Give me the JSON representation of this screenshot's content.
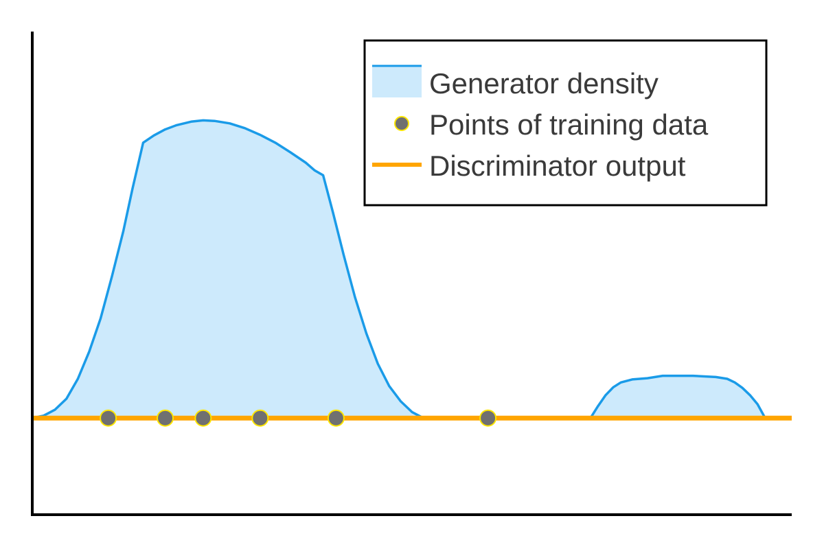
{
  "chart_data": {
    "type": "area",
    "title": "",
    "xlabel": "",
    "ylabel": "",
    "xlim": [
      0,
      100
    ],
    "ylim": [
      -16,
      64
    ],
    "grid": false,
    "ticks": false,
    "legend_position": "top-right",
    "colors": {
      "generator_line": "#1a9be8",
      "generator_fill": "#cdeafc",
      "discriminator": "#ffa500",
      "point_fill": "#707070",
      "point_edge": "#ffe600",
      "axis": "#000000",
      "legend_border": "#000000",
      "legend_text": "#3a3a3a"
    },
    "series": [
      {
        "name": "Generator density",
        "kind": "filled-curve",
        "segments": [
          [
            [
              0,
              0
            ],
            [
              1.5,
              0.4
            ],
            [
              3,
              1.4
            ],
            [
              4.5,
              3.2
            ],
            [
              6,
              6.5
            ],
            [
              7.5,
              11
            ],
            [
              9,
              16.5
            ],
            [
              10.5,
              23.5
            ],
            [
              12,
              31
            ],
            [
              13.2,
              38
            ],
            [
              14.6,
              45.6
            ],
            [
              16,
              46.8
            ],
            [
              17.5,
              47.8
            ],
            [
              19,
              48.5
            ],
            [
              21,
              49.1
            ],
            [
              22.5,
              49.3
            ],
            [
              24,
              49.2
            ],
            [
              26,
              48.8
            ],
            [
              28,
              48
            ],
            [
              30,
              46.9
            ],
            [
              32,
              45.6
            ],
            [
              34,
              44
            ],
            [
              36,
              42.3
            ],
            [
              37.2,
              41
            ],
            [
              38.3,
              40.2
            ],
            [
              39.6,
              34
            ],
            [
              41,
              27
            ],
            [
              42.5,
              20
            ],
            [
              44,
              14
            ],
            [
              45.5,
              9
            ],
            [
              47,
              5.3
            ],
            [
              48.5,
              2.8
            ],
            [
              50,
              1
            ],
            [
              51.5,
              0
            ]
          ],
          [
            [
              73.5,
              0
            ],
            [
              74.5,
              2
            ],
            [
              75.5,
              3.8
            ],
            [
              76.5,
              5.1
            ],
            [
              77.5,
              5.9
            ],
            [
              79,
              6.4
            ],
            [
              81,
              6.6
            ],
            [
              83,
              7
            ],
            [
              87,
              7
            ],
            [
              90,
              6.8
            ],
            [
              91.5,
              6.5
            ],
            [
              92.5,
              5.9
            ],
            [
              93.5,
              5
            ],
            [
              94.5,
              3.8
            ],
            [
              95.5,
              2.3
            ],
            [
              96.5,
              0
            ]
          ]
        ]
      },
      {
        "name": "Points of training data",
        "kind": "points",
        "x": [
          10,
          17.5,
          22.5,
          30,
          40,
          60
        ],
        "y": [
          0,
          0,
          0,
          0,
          0,
          0
        ]
      },
      {
        "name": "Discriminator output",
        "kind": "line",
        "x": [
          0,
          100
        ],
        "y": [
          0,
          0
        ]
      }
    ],
    "legend": [
      {
        "label": "Generator density",
        "symbol": "filled-area"
      },
      {
        "label": "Points of training data",
        "symbol": "marker"
      },
      {
        "label": "Discriminator output",
        "symbol": "line"
      }
    ]
  }
}
